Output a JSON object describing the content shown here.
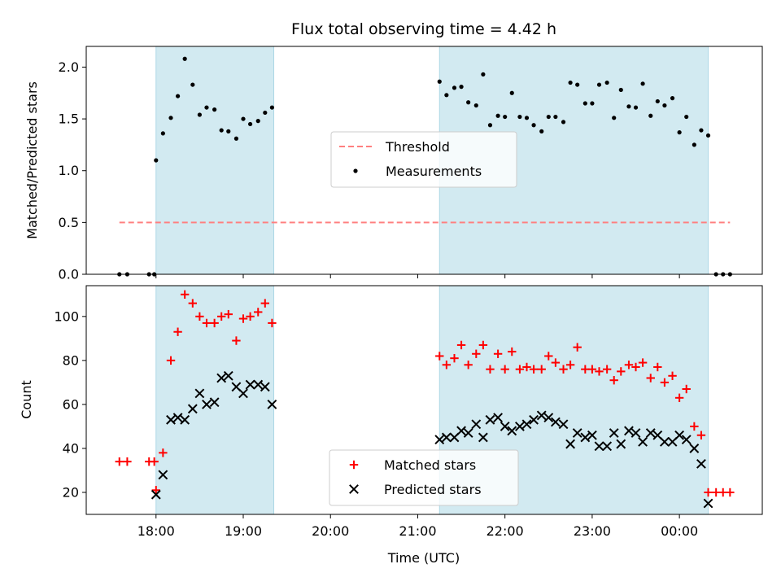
{
  "chart_data": {
    "type": "scatter",
    "title": "Flux total observing time = 4.42 h",
    "xlabel": "Time (UTC)",
    "x_unit": "hours of day (UTC); values >= 24 are after midnight",
    "xlim": [
      17.2,
      24.95
    ],
    "xticks": [
      {
        "value": 18,
        "label": "18:00"
      },
      {
        "value": 19,
        "label": "19:00"
      },
      {
        "value": 20,
        "label": "20:00"
      },
      {
        "value": 21,
        "label": "21:00"
      },
      {
        "value": 22,
        "label": "22:00"
      },
      {
        "value": 23,
        "label": "23:00"
      },
      {
        "value": 24,
        "label": "00:00"
      }
    ],
    "colors": {
      "shade": "#add8e6",
      "threshold": "#ff7f7f",
      "measurements": "#000000",
      "matched": "#ff0000",
      "predicted": "#000000"
    },
    "shaded_intervals": [
      [
        18.0,
        19.35
      ],
      [
        21.25,
        24.33
      ]
    ],
    "panels": [
      {
        "id": "top",
        "ylabel": "Matched/Predicted stars",
        "ylim": [
          0,
          2.2
        ],
        "yticks": [
          {
            "value": 0,
            "label": "0.0"
          },
          {
            "value": 0.5,
            "label": "0.5"
          },
          {
            "value": 1.0,
            "label": "1.0"
          },
          {
            "value": 1.5,
            "label": "1.5"
          },
          {
            "value": 2.0,
            "label": "2.0"
          }
        ],
        "legend": {
          "position": "center",
          "entries": [
            "Threshold",
            "Measurements"
          ]
        },
        "series": [
          {
            "name": "Threshold",
            "kind": "dashed-line",
            "color": "#ff7f7f",
            "x": [
              17.58,
              24.58
            ],
            "y": [
              0.5,
              0.5
            ]
          },
          {
            "name": "Measurements",
            "kind": "dot",
            "color": "#000000",
            "x": [
              17.58,
              17.67,
              17.92,
              17.98,
              18.0,
              18.08,
              18.17,
              18.25,
              18.33,
              18.42,
              18.5,
              18.58,
              18.67,
              18.75,
              18.83,
              18.92,
              19.0,
              19.08,
              19.17,
              19.25,
              19.33,
              21.25,
              21.33,
              21.42,
              21.5,
              21.58,
              21.67,
              21.75,
              21.83,
              21.92,
              22.0,
              22.08,
              22.17,
              22.25,
              22.33,
              22.42,
              22.5,
              22.58,
              22.67,
              22.75,
              22.83,
              22.92,
              23.0,
              23.08,
              23.17,
              23.25,
              23.33,
              23.42,
              23.5,
              23.58,
              23.67,
              23.75,
              23.83,
              23.92,
              24.0,
              24.08,
              24.17,
              24.25,
              24.33,
              24.42,
              24.5,
              24.58
            ],
            "y": [
              0,
              0,
              0,
              0,
              1.1,
              1.36,
              1.51,
              1.72,
              2.08,
              1.83,
              1.54,
              1.61,
              1.59,
              1.39,
              1.38,
              1.31,
              1.5,
              1.45,
              1.48,
              1.56,
              1.61,
              1.86,
              1.73,
              1.8,
              1.81,
              1.66,
              1.63,
              1.93,
              1.44,
              1.53,
              1.52,
              1.75,
              1.52,
              1.51,
              1.44,
              1.38,
              1.52,
              1.52,
              1.47,
              1.85,
              1.83,
              1.65,
              1.65,
              1.83,
              1.85,
              1.51,
              1.78,
              1.62,
              1.61,
              1.84,
              1.53,
              1.67,
              1.63,
              1.7,
              1.37,
              1.52,
              1.25,
              1.39,
              1.34,
              0,
              0,
              0
            ]
          }
        ]
      },
      {
        "id": "bottom",
        "ylabel": "Count",
        "ylim": [
          10,
          114
        ],
        "yticks": [
          {
            "value": 20,
            "label": "20"
          },
          {
            "value": 40,
            "label": "40"
          },
          {
            "value": 60,
            "label": "60"
          },
          {
            "value": 80,
            "label": "80"
          },
          {
            "value": 100,
            "label": "100"
          }
        ],
        "legend": {
          "position": "lower center",
          "entries": [
            "Matched stars",
            "Predicted stars"
          ]
        },
        "series": [
          {
            "name": "Matched stars",
            "kind": "plus",
            "color": "#ff0000",
            "x": [
              17.58,
              17.67,
              17.92,
              17.98,
              18.0,
              18.08,
              18.17,
              18.25,
              18.33,
              18.42,
              18.5,
              18.58,
              18.67,
              18.75,
              18.83,
              18.92,
              19.0,
              19.08,
              19.17,
              19.25,
              19.33,
              21.25,
              21.33,
              21.42,
              21.5,
              21.58,
              21.67,
              21.75,
              21.83,
              21.92,
              22.0,
              22.08,
              22.17,
              22.25,
              22.33,
              22.42,
              22.5,
              22.58,
              22.67,
              22.75,
              22.83,
              22.92,
              23.0,
              23.08,
              23.17,
              23.25,
              23.33,
              23.42,
              23.5,
              23.58,
              23.67,
              23.75,
              23.83,
              23.92,
              24.0,
              24.08,
              24.17,
              24.25,
              24.33,
              24.42,
              24.5,
              24.58
            ],
            "y": [
              34,
              34,
              34,
              34,
              21,
              38,
              80,
              93,
              110,
              106,
              100,
              97,
              97,
              100,
              101,
              89,
              99,
              100,
              102,
              106,
              97,
              82,
              78,
              81,
              87,
              78,
              83,
              87,
              76,
              83,
              76,
              84,
              76,
              77,
              76,
              76,
              82,
              79,
              76,
              78,
              86,
              76,
              76,
              75,
              76,
              71,
              75,
              78,
              77,
              79,
              72,
              77,
              70,
              73,
              63,
              67,
              50,
              46,
              20,
              20,
              20,
              20
            ]
          },
          {
            "name": "Predicted stars",
            "kind": "x",
            "color": "#000000",
            "x": [
              18.0,
              18.08,
              18.17,
              18.25,
              18.33,
              18.42,
              18.5,
              18.58,
              18.67,
              18.75,
              18.83,
              18.92,
              19.0,
              19.08,
              19.17,
              19.25,
              19.33,
              21.25,
              21.33,
              21.42,
              21.5,
              21.58,
              21.67,
              21.75,
              21.83,
              21.92,
              22.0,
              22.08,
              22.17,
              22.25,
              22.33,
              22.42,
              22.5,
              22.58,
              22.67,
              22.75,
              22.83,
              22.92,
              23.0,
              23.08,
              23.17,
              23.25,
              23.33,
              23.42,
              23.5,
              23.58,
              23.67,
              23.75,
              23.83,
              23.92,
              24.0,
              24.08,
              24.17,
              24.25,
              24.33
            ],
            "y": [
              19,
              28,
              53,
              54,
              53,
              58,
              65,
              60,
              61,
              72,
              73,
              68,
              65,
              69,
              69,
              68,
              60,
              44,
              45,
              45,
              48,
              47,
              51,
              45,
              53,
              54,
              50,
              48,
              50,
              51,
              53,
              55,
              54,
              52,
              51,
              42,
              47,
              45,
              46,
              41,
              41,
              47,
              42,
              48,
              47,
              43,
              47,
              46,
              43,
              43,
              46,
              44,
              40,
              33,
              15
            ]
          }
        ]
      }
    ]
  }
}
